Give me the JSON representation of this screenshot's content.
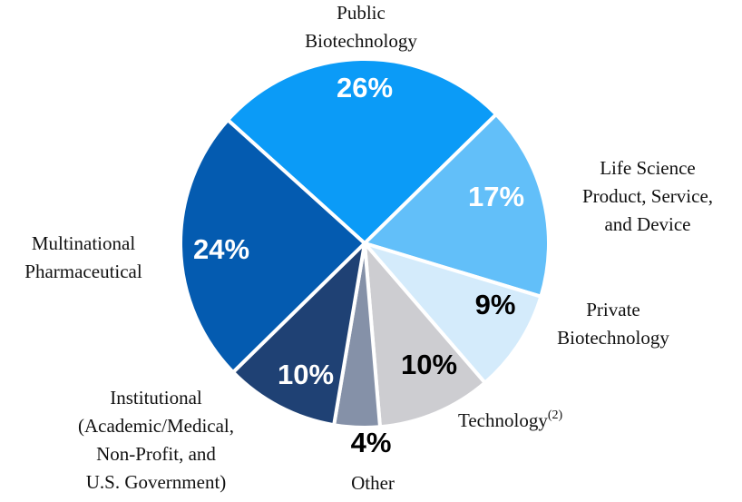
{
  "chart_data": {
    "type": "pie",
    "title": "",
    "start_angle_deg": 312,
    "direction": "clockwise",
    "slices": [
      {
        "label": [
          "Public",
          "Biotechnology"
        ],
        "value_label": "26%",
        "value": 26,
        "color": "#0b9bf7",
        "value_text_color": "#ffffff"
      },
      {
        "label": [
          "Life Science",
          "Product, Service,",
          "and Device"
        ],
        "value_label": "17%",
        "value": 17,
        "color": "#62bff9",
        "value_text_color": "#ffffff"
      },
      {
        "label": [
          "Private",
          "Biotechnology"
        ],
        "value_label": "9%",
        "value": 9,
        "color": "#d4ebfb",
        "value_text_color": "#000000"
      },
      {
        "label": [
          "Technology"
        ],
        "label_superscript": "(2)",
        "value_label": "10%",
        "value": 10,
        "color": "#cdcdd1",
        "value_text_color": "#000000"
      },
      {
        "label": [
          "Other"
        ],
        "value_label": "4%",
        "value": 4,
        "color": "#8591a8",
        "value_text_color": "#000000"
      },
      {
        "label": [
          "Institutional",
          "(Academic/Medical,",
          "Non-Profit, and",
          "U.S. Government)"
        ],
        "value_label": "10%",
        "value": 10,
        "color": "#1f4174",
        "value_text_color": "#ffffff"
      },
      {
        "label": [
          "Multinational",
          "Pharmaceutical"
        ],
        "value_label": "24%",
        "value": 24,
        "color": "#045bb0",
        "value_text_color": "#ffffff"
      }
    ]
  }
}
